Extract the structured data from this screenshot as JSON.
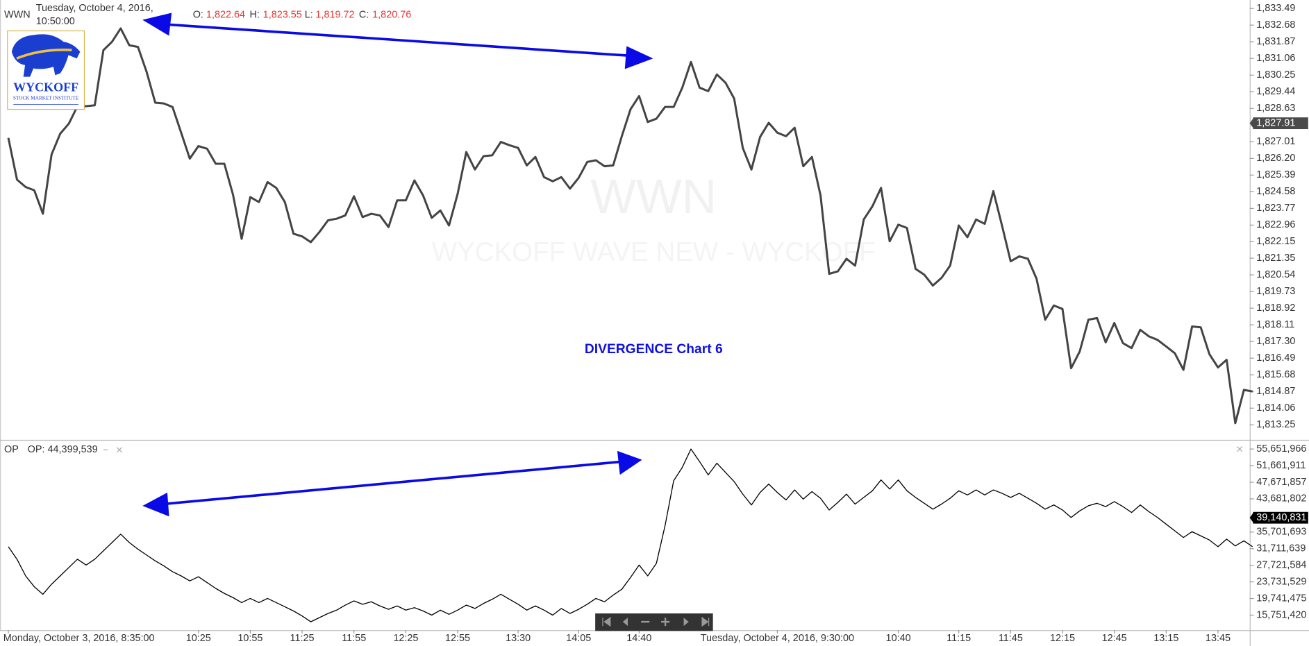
{
  "header": {
    "symbol": "WWN",
    "date": "Tuesday, October 4, 2016,",
    "time": "10:50:00",
    "ohlc": [
      {
        "label": "O:",
        "value": "1,822.64"
      },
      {
        "label": "H:",
        "value": "1,823.55"
      },
      {
        "label": "L:",
        "value": "1,819.72"
      },
      {
        "label": "C:",
        "value": "1,820.76"
      }
    ]
  },
  "watermark": {
    "symbol": "WWN",
    "name": "WYCKOFF WAVE NEW - WYCKOFF"
  },
  "logo": {
    "name": "WYCKOFF",
    "subtitle": "STOCK MARKET INSTITUTE"
  },
  "annotation": "DIVERGENCE Chart 6",
  "indicator": {
    "symbol": "OP",
    "reading": "OP: 44,399,539"
  },
  "chart_data": [
    {
      "type": "line",
      "color": "#444444",
      "values": [
        1827.2,
        1825.17,
        1824.81,
        1824.65,
        1823.51,
        1826.39,
        1827.4,
        1827.89,
        1828.74,
        1828.74,
        1828.78,
        1831.46,
        1831.87,
        1832.52,
        1831.7,
        1831.62,
        1830.41,
        1828.91,
        1828.87,
        1828.7,
        1827.45,
        1826.19,
        1826.8,
        1826.67,
        1825.94,
        1825.94,
        1824.44,
        1822.29,
        1824.32,
        1824.08,
        1825.05,
        1824.77,
        1824.08,
        1822.54,
        1822.41,
        1822.13,
        1822.62,
        1823.19,
        1823.27,
        1823.43,
        1824.36,
        1823.35,
        1823.51,
        1823.43,
        1822.86,
        1824.16,
        1824.16,
        1825.13,
        1824.4,
        1823.31,
        1823.67,
        1822.94,
        1824.48,
        1826.51,
        1825.66,
        1826.31,
        1826.35,
        1827.0,
        1826.84,
        1826.71,
        1825.86,
        1826.27,
        1825.29,
        1825.09,
        1825.29,
        1824.73,
        1825.25,
        1826.03,
        1826.11,
        1825.82,
        1825.86,
        1827.28,
        1828.58,
        1829.23,
        1827.97,
        1828.13,
        1828.7,
        1828.7,
        1829.64,
        1830.89,
        1829.64,
        1829.47,
        1830.28,
        1829.88,
        1829.11,
        1826.71,
        1825.66,
        1827.24,
        1827.93,
        1827.45,
        1827.28,
        1827.69,
        1825.82,
        1826.27,
        1824.4,
        1820.59,
        1820.71,
        1821.32,
        1820.99,
        1823.23,
        1823.87,
        1824.77,
        1822.17,
        1822.98,
        1822.82,
        1820.83,
        1820.55,
        1820.02,
        1820.39,
        1820.99,
        1822.94,
        1822.37,
        1823.23,
        1823.02,
        1824.61,
        1822.94,
        1821.2,
        1821.44,
        1821.32,
        1820.35,
        1818.36,
        1819.05,
        1818.88,
        1816.0,
        1816.82,
        1818.36,
        1818.44,
        1817.26,
        1818.2,
        1817.22,
        1816.98,
        1817.87,
        1817.55,
        1817.38,
        1817.06,
        1816.73,
        1815.92,
        1818.03,
        1817.99,
        1816.69,
        1816.04,
        1816.41,
        1813.33,
        1814.95,
        1814.87
      ],
      "ylim": [
        1812.52,
        1833.9
      ],
      "yticks": [
        {
          "value": 1833.49,
          "label": "1,833.49"
        },
        {
          "value": 1832.68,
          "label": "1,832.68"
        },
        {
          "value": 1831.87,
          "label": "1,831.87"
        },
        {
          "value": 1831.06,
          "label": "1,831.06"
        },
        {
          "value": 1830.25,
          "label": "1,830.25"
        },
        {
          "value": 1829.44,
          "label": "1,829.44"
        },
        {
          "value": 1828.63,
          "label": "1,828.63"
        },
        {
          "value": 1827.01,
          "label": "1,827.01"
        },
        {
          "value": 1826.2,
          "label": "1,826.20"
        },
        {
          "value": 1825.39,
          "label": "1,825.39"
        },
        {
          "value": 1824.58,
          "label": "1,824.58"
        },
        {
          "value": 1823.77,
          "label": "1,823.77"
        },
        {
          "value": 1822.96,
          "label": "1,822.96"
        },
        {
          "value": 1822.15,
          "label": "1,822.15"
        },
        {
          "value": 1821.35,
          "label": "1,821.35"
        },
        {
          "value": 1820.54,
          "label": "1,820.54"
        },
        {
          "value": 1819.73,
          "label": "1,819.73"
        },
        {
          "value": 1818.92,
          "label": "1,818.92"
        },
        {
          "value": 1818.11,
          "label": "1,818.11"
        },
        {
          "value": 1817.3,
          "label": "1,817.30"
        },
        {
          "value": 1816.49,
          "label": "1,816.49"
        },
        {
          "value": 1815.68,
          "label": "1,815.68"
        },
        {
          "value": 1814.87,
          "label": "1,814.87"
        },
        {
          "value": 1814.06,
          "label": "1,814.06"
        },
        {
          "value": 1813.25,
          "label": "1,813.25"
        }
      ],
      "last_value": {
        "value": 1827.91,
        "label": "1,827.91"
      },
      "last_value_color": "#4a4a4a"
    },
    {
      "type": "line",
      "color": "#000000",
      "categories": [
        "Monday, October 3, 2016, 8:35:00",
        null,
        null,
        null,
        null,
        null,
        null,
        null,
        null,
        null,
        null,
        null,
        null,
        null,
        null,
        null,
        null,
        null,
        null,
        null,
        null,
        null,
        "10:25",
        null,
        null,
        null,
        null,
        null,
        "10:55",
        null,
        null,
        null,
        null,
        null,
        "11:25",
        null,
        null,
        null,
        null,
        null,
        "11:55",
        null,
        null,
        null,
        null,
        null,
        "12:25",
        null,
        null,
        null,
        null,
        null,
        "12:55",
        null,
        null,
        null,
        null,
        null,
        null,
        "13:30",
        null,
        null,
        null,
        null,
        null,
        null,
        "14:05",
        null,
        null,
        null,
        null,
        null,
        null,
        "14:40",
        null,
        null,
        null,
        null,
        null,
        null,
        null,
        null,
        null,
        null,
        null,
        null,
        null,
        null,
        null,
        "Tuesday, October 4, 2016, 9:30:00",
        null,
        null,
        null,
        null,
        null,
        null,
        null,
        null,
        null,
        null,
        null,
        null,
        null,
        "10:40",
        null,
        null,
        null,
        null,
        null,
        null,
        "11:15",
        null,
        null,
        null,
        null,
        null,
        "11:45",
        null,
        null,
        null,
        null,
        null,
        "12:15",
        null,
        null,
        null,
        null,
        null,
        "12:45",
        null,
        null,
        null,
        null,
        null,
        "13:15",
        null,
        null,
        null,
        null,
        null,
        "13:45",
        null,
        null,
        null,
        null
      ],
      "values": [
        32190000,
        29180000,
        25170000,
        22570000,
        20760000,
        23170000,
        25170000,
        27180000,
        29180000,
        27780000,
        29180000,
        31190000,
        33190000,
        35200000,
        33190000,
        31590000,
        30190000,
        28780000,
        27580000,
        26180000,
        25170000,
        23970000,
        24970000,
        23570000,
        22170000,
        20960000,
        19960000,
        18760000,
        19760000,
        18760000,
        19760000,
        18760000,
        17760000,
        16750000,
        15550000,
        14150000,
        15150000,
        16150000,
        16950000,
        18160000,
        19160000,
        18360000,
        18960000,
        17960000,
        17150000,
        17960000,
        16950000,
        17550000,
        16750000,
        15750000,
        16950000,
        15950000,
        16950000,
        18160000,
        17350000,
        18560000,
        19560000,
        20760000,
        19560000,
        18360000,
        16950000,
        17960000,
        16950000,
        15750000,
        17350000,
        16150000,
        17150000,
        18360000,
        19760000,
        18960000,
        20560000,
        21970000,
        24770000,
        27780000,
        25170000,
        28180000,
        37200000,
        48030000,
        51240000,
        55650000,
        52640000,
        49440000,
        52240000,
        50040000,
        47830000,
        44820000,
        42220000,
        45220000,
        47230000,
        45220000,
        43420000,
        45830000,
        43620000,
        45420000,
        43820000,
        41010000,
        42820000,
        44820000,
        42420000,
        44020000,
        45620000,
        48230000,
        46030000,
        48230000,
        45620000,
        44020000,
        42620000,
        41210000,
        42420000,
        43820000,
        45620000,
        44620000,
        45830000,
        44620000,
        45830000,
        45020000,
        44020000,
        45020000,
        43820000,
        42620000,
        41210000,
        42220000,
        41010000,
        39210000,
        40810000,
        42020000,
        42620000,
        41820000,
        43020000,
        41820000,
        40410000,
        42220000,
        40610000,
        39210000,
        37600000,
        36000000,
        34400000,
        35800000,
        34800000,
        33800000,
        32190000,
        34000000,
        32390000,
        33590000,
        32190000
      ],
      "ylim": [
        12142381,
        57657016
      ],
      "yticks": [
        {
          "value": 55651966,
          "label": "55,651,966"
        },
        {
          "value": 51661911,
          "label": "51,661,911"
        },
        {
          "value": 47671857,
          "label": "47,671,857"
        },
        {
          "value": 43681802,
          "label": "43,681,802"
        },
        {
          "value": 35701693,
          "label": "35,701,693"
        },
        {
          "value": 31711639,
          "label": "31,711,639"
        },
        {
          "value": 27721584,
          "label": "27,721,584"
        },
        {
          "value": 23731529,
          "label": "23,731,529"
        },
        {
          "value": 19741475,
          "label": "19,741,475"
        },
        {
          "value": 15751420,
          "label": "15,751,420"
        }
      ],
      "last_value": {
        "value": 39140831,
        "label": "39,140,831"
      },
      "last_value_color": "#000000"
    }
  ]
}
